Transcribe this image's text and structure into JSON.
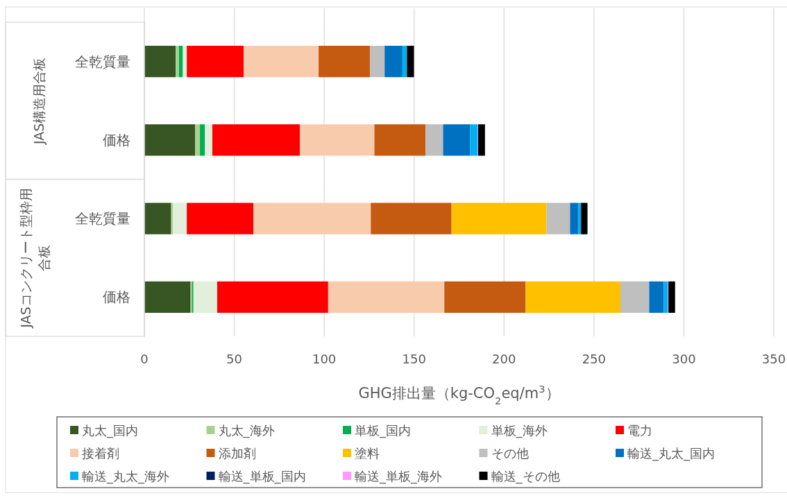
{
  "chart_data": {
    "type": "bar",
    "orientation": "horizontal",
    "stacked": true,
    "categories": [
      "全乾質量",
      "価格",
      "全乾質量",
      "価格"
    ],
    "annotations": [
      "JAS構造用合板",
      "JASコンクリート型枠用合板"
    ],
    "xlabel": "GHG排出量（kg-CO$_{2}$eq/m$^{3}$）",
    "xlim": [
      0,
      350
    ],
    "xticks": [
      0,
      50,
      100,
      150,
      200,
      250,
      300,
      350
    ],
    "grid": "x",
    "legend": "bottom",
    "series": [
      {
        "name": "丸太_国内",
        "color": "#375623",
        "values": [
          17.5,
          28.2,
          14.9,
          25.7
        ]
      },
      {
        "name": "丸太_海外",
        "color": "#a9d18e",
        "values": [
          1.7,
          2.7,
          0.9,
          0.8
        ]
      },
      {
        "name": "単板_国内",
        "color": "#00b050",
        "values": [
          2.2,
          2.8,
          0,
          0.8
        ]
      },
      {
        "name": "単板_海外",
        "color": "#e2efda",
        "values": [
          2.2,
          4.1,
          7.8,
          13.2
        ]
      },
      {
        "name": "電力",
        "color": "#ff0000",
        "values": [
          31.6,
          48.7,
          37.0,
          61.7
        ]
      },
      {
        "name": "接着剤",
        "color": "#f8cbad",
        "values": [
          41.7,
          41.4,
          65.3,
          64.6
        ]
      },
      {
        "name": "添加剤",
        "color": "#c55a11",
        "values": [
          28.5,
          28.5,
          44.9,
          45.2
        ]
      },
      {
        "name": "塗料",
        "color": "#ffc000",
        "values": [
          0,
          0,
          52.8,
          52.7
        ]
      },
      {
        "name": "その他",
        "color": "#bfbfbf",
        "values": [
          8.2,
          9.7,
          13.1,
          16.0
        ]
      },
      {
        "name": "輸送_丸太_国内",
        "color": "#0070c0",
        "values": [
          9.9,
          15.1,
          4.6,
          8.1
        ]
      },
      {
        "name": "輸送_丸太_海外",
        "color": "#00b0f0",
        "values": [
          2.5,
          4.1,
          1.5,
          2.2
        ]
      },
      {
        "name": "輸送_単板_国内",
        "color": "#002060",
        "values": [
          0,
          0,
          0,
          0
        ]
      },
      {
        "name": "輸送_単板_海外",
        "color": "#ff99ff",
        "values": [
          0,
          0.3,
          0,
          0.4
        ]
      },
      {
        "name": "輸送_その他",
        "color": "#000000",
        "values": [
          3.9,
          3.8,
          3.6,
          3.7
        ]
      }
    ]
  }
}
